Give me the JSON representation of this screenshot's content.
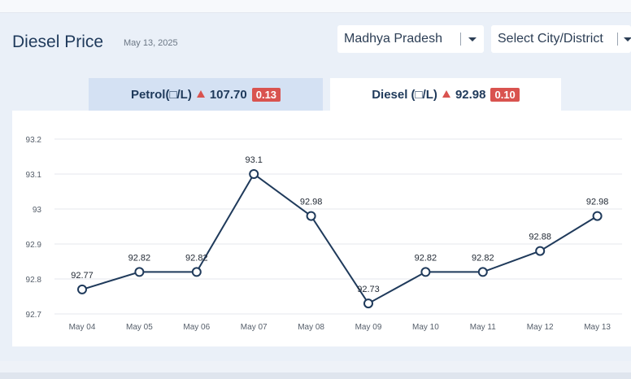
{
  "header": {
    "title": "Diesel Price",
    "date": "May 13, 2025"
  },
  "filters": {
    "state": "Madhya Pradesh",
    "city_placeholder": "Select City/District"
  },
  "tabs": [
    {
      "label": "Petrol(□/L)",
      "price": "107.70",
      "change": "0.13",
      "active": false
    },
    {
      "label": "Diesel (□/L)",
      "price": "92.98",
      "change": "0.10",
      "active": true
    }
  ],
  "colors": {
    "line": "#1f3a5b",
    "up": "#d9534f",
    "active_tab": "#ffffff",
    "inactive_tab": "#d4e1f3"
  },
  "icons": {
    "price_up": "triangle-up-icon",
    "dropdown": "chevron-down-icon"
  },
  "chart_data": {
    "type": "line",
    "categories": [
      "May 04",
      "May 05",
      "May 06",
      "May 07",
      "May 08",
      "May 09",
      "May 10",
      "May 11",
      "May 12",
      "May 13"
    ],
    "series": [
      {
        "values": [
          92.77,
          92.82,
          92.82,
          93.1,
          92.98,
          92.73,
          92.82,
          92.82,
          92.88,
          92.98
        ]
      }
    ],
    "data_labels": [
      "92.77",
      "92.82",
      "92.82",
      "93.1",
      "92.98",
      "92.73",
      "92.82",
      "92.82",
      "92.88",
      "92.98"
    ],
    "yticks": [
      "92.7",
      "92.8",
      "92.9",
      "93",
      "93.1",
      "93.2"
    ],
    "ylim": [
      92.7,
      93.2
    ],
    "grid": true,
    "xlabel": "",
    "ylabel": ""
  }
}
